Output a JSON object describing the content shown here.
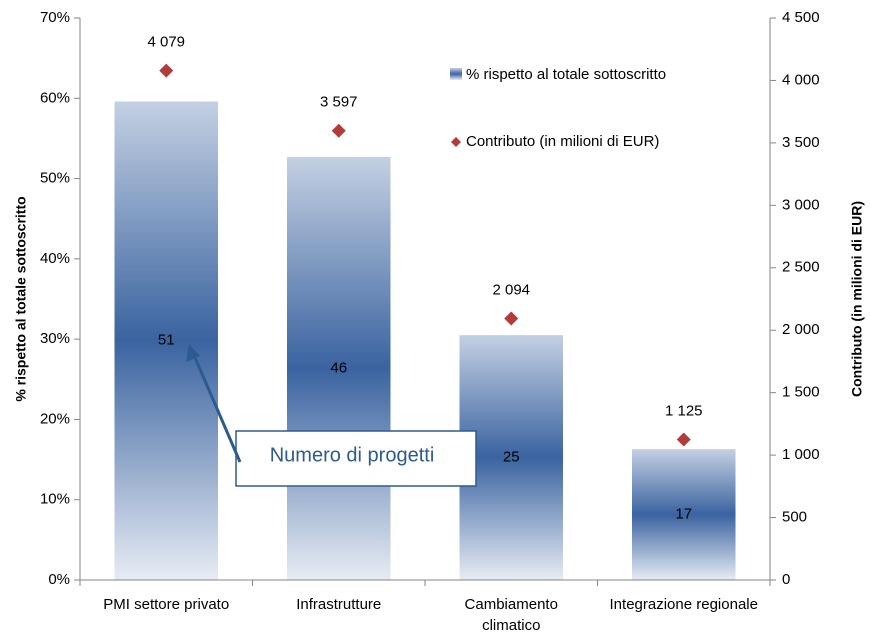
{
  "chart_data": {
    "type": "bar",
    "categories": [
      "PMI settore privato",
      "Infrastrutture",
      "Cambiamento climatico",
      "Integrazione regionale"
    ],
    "series": [
      {
        "name": "% rispetto al totale sottoscritto",
        "type": "bar",
        "color": "#3a63a0",
        "values": [
          59.6,
          52.7,
          30.5,
          16.3
        ],
        "bar_labels": [
          51,
          46,
          25,
          17
        ]
      },
      {
        "name": "Contributo (in milioni di EUR)",
        "type": "scatter",
        "axis": "y2",
        "color": "#b23b3b",
        "values": [
          4079,
          3597,
          2094,
          1125
        ],
        "value_labels": [
          "4 079",
          "3 597",
          "2 094",
          "1 125"
        ]
      }
    ],
    "ylabel": "% rispetto al totale sottoscritto",
    "y2label": "Contributo (in milioni di EUR)",
    "ylim": [
      0,
      70
    ],
    "yticks": [
      {
        "value": 0,
        "label": "0%"
      },
      {
        "value": 10,
        "label": "10%"
      },
      {
        "value": 20,
        "label": "20%"
      },
      {
        "value": 30,
        "label": "30%"
      },
      {
        "value": 40,
        "label": "40%"
      },
      {
        "value": 50,
        "label": "50%"
      },
      {
        "value": 60,
        "label": "60%"
      },
      {
        "value": 70,
        "label": "70%"
      }
    ],
    "y2lim": [
      0,
      4500
    ],
    "y2ticks": [
      0,
      500,
      {
        "value": 1000,
        "label": "1 000"
      },
      {
        "value": 1500,
        "label": "1 500"
      },
      {
        "value": 2000,
        "label": "2 000"
      },
      {
        "value": 2500,
        "label": "2 500"
      },
      {
        "value": 3000,
        "label": "3 000"
      },
      {
        "value": 3500,
        "label": "3 500"
      },
      {
        "value": 4000,
        "label": "4 000"
      },
      {
        "value": 4500,
        "label": "4 500"
      }
    ],
    "annotation": "Numero di progetti",
    "legend": "upper right",
    "grid": false
  }
}
